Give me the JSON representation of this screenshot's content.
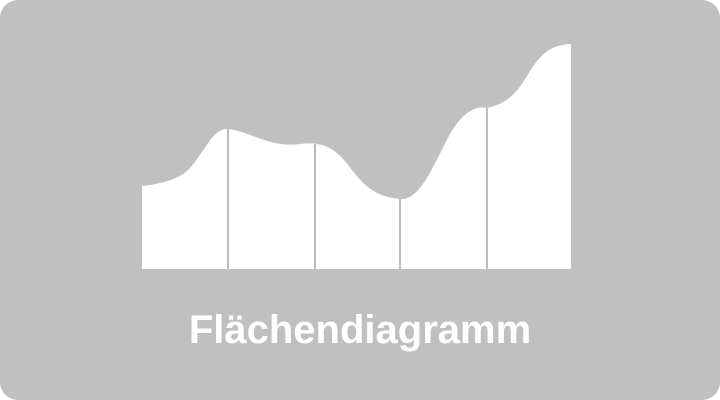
{
  "tile": {
    "label": "Flächendiagramm",
    "icon": "area-chart-icon",
    "colors": {
      "background": "#c0c0c0",
      "fill": "#ffffff",
      "divider": "#808080",
      "label": "#ffffff"
    }
  }
}
